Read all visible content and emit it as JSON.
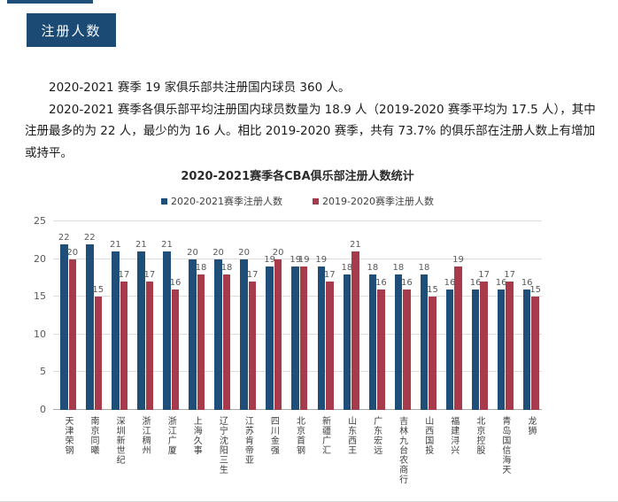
{
  "badge": "注册人数",
  "paragraphs": [
    "2020-2021 赛季 19 家俱乐部共注册国内球员 360 人。",
    "2020-2021 赛季各俱乐部平均注册国内球员数量为 18.9 人（2019-2020 赛季平均为 17.5 人），其中注册最多的为 22 人，最少的为 16 人。相比 2019-2020 赛季，共有 73.7% 的俱乐部在注册人数上有增加或持平。"
  ],
  "chart_data": {
    "type": "bar",
    "title": "2020-2021赛季各CBA俱乐部注册人数统计",
    "categories": [
      "天津荣钢",
      "南京同曦",
      "深圳新世纪",
      "浙江稠州",
      "浙江广厦",
      "上海久事",
      "辽宁沈阳三生",
      "江苏肯帝亚",
      "四川金强",
      "北京首钢",
      "新疆广汇",
      "山东西王",
      "广东宏远",
      "吉林九台农商行",
      "山西国投",
      "福建浔兴",
      "北京控股",
      "青岛国信海天",
      "龙狮"
    ],
    "series": [
      {
        "name": "2020-2021赛季注册人数",
        "color": "#1F4E79",
        "values": [
          22,
          22,
          21,
          21,
          21,
          20,
          20,
          20,
          19,
          19,
          19,
          18,
          18,
          18,
          18,
          16,
          16,
          16,
          16
        ]
      },
      {
        "name": "2019-2020赛季注册人数",
        "color": "#A83B4B",
        "values": [
          20,
          15,
          17,
          17,
          16,
          18,
          18,
          17,
          20,
          19,
          17,
          21,
          16,
          16,
          15,
          19,
          17,
          17,
          15
        ]
      }
    ],
    "xlabel": "",
    "ylabel": "",
    "ylim": [
      0,
      25
    ],
    "yticks": [
      0,
      5,
      10,
      15,
      20,
      25
    ],
    "grid": true,
    "legend_position": "top",
    "label_color": "#595959"
  }
}
